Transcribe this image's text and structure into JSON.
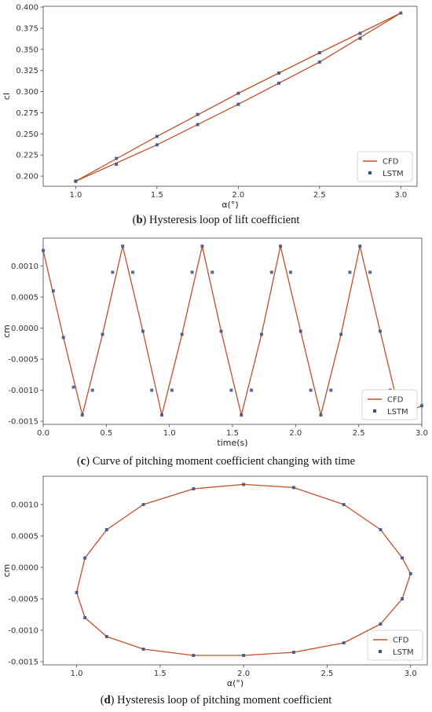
{
  "chart_data": [
    {
      "type": "line",
      "caption": {
        "letter": "b",
        "text": " Hysteresis loop of lift coefficient"
      },
      "xlabel": "α(°)",
      "ylabel": "cl",
      "xlim": [
        0.8,
        3.1
      ],
      "ylim": [
        0.188,
        0.401
      ],
      "xticks": [
        1.0,
        1.5,
        2.0,
        2.5,
        3.0
      ],
      "yticks": [
        0.2,
        0.225,
        0.25,
        0.275,
        0.3,
        0.325,
        0.35,
        0.375,
        0.4
      ],
      "ytick_decimals": 3,
      "legend": {
        "position": "bottom-right",
        "entries": [
          "CFD",
          "LSTM"
        ]
      },
      "series": [
        {
          "name": "CFD",
          "style": "line",
          "color": "#c0502a",
          "x": [
            1.0,
            1.5,
            2.0,
            2.5,
            3.0,
            2.5,
            2.0,
            1.5,
            1.0
          ],
          "y": [
            0.194,
            0.247,
            0.298,
            0.346,
            0.393,
            0.335,
            0.285,
            0.237,
            0.194
          ]
        },
        {
          "name": "LSTM",
          "style": "markers",
          "color": "#3a4f8c",
          "x": [
            1.0,
            1.25,
            1.5,
            1.75,
            2.0,
            2.25,
            2.5,
            2.75,
            3.0,
            2.75,
            2.5,
            2.25,
            2.0,
            1.75,
            1.5,
            1.25,
            1.0
          ],
          "y": [
            0.194,
            0.221,
            0.247,
            0.273,
            0.298,
            0.322,
            0.346,
            0.369,
            0.393,
            0.363,
            0.335,
            0.31,
            0.285,
            0.261,
            0.237,
            0.214,
            0.194
          ]
        }
      ]
    },
    {
      "type": "line",
      "caption": {
        "letter": "c",
        "text": " Curve of pitching moment coefficient changing with time"
      },
      "xlabel": "time(s)",
      "ylabel": "cm",
      "xlim": [
        0.0,
        3.0
      ],
      "ylim": [
        -0.00155,
        0.00145
      ],
      "xticks": [
        0.0,
        0.5,
        1.0,
        1.5,
        2.0,
        2.5,
        3.0
      ],
      "yticks": [
        -0.0015,
        -0.001,
        -0.0005,
        0.0,
        0.0005,
        0.001
      ],
      "ytick_decimals": 4,
      "legend": {
        "position": "bottom-right",
        "entries": [
          "CFD",
          "LSTM"
        ]
      },
      "series": [
        {
          "name": "CFD",
          "style": "line",
          "color": "#c0502a",
          "x": [
            0.0,
            0.16,
            0.31,
            0.47,
            0.63,
            0.79,
            0.94,
            1.1,
            1.26,
            1.41,
            1.57,
            1.73,
            1.88,
            2.04,
            2.2,
            2.36,
            2.51,
            2.67,
            2.83,
            3.0
          ],
          "y": [
            0.00125,
            -0.00015,
            -0.0014,
            -0.0001,
            0.00132,
            -5e-05,
            -0.0014,
            -0.0001,
            0.00132,
            -5e-05,
            -0.0014,
            -0.0001,
            0.00132,
            -5e-05,
            -0.0014,
            -0.0001,
            0.00132,
            -5e-05,
            -0.0014,
            -0.00125
          ]
        },
        {
          "name": "LSTM",
          "style": "markers",
          "color": "#3a4f8c",
          "x": [
            0.0,
            0.08,
            0.16,
            0.24,
            0.31,
            0.39,
            0.47,
            0.55,
            0.63,
            0.71,
            0.79,
            0.86,
            0.94,
            1.02,
            1.1,
            1.18,
            1.26,
            1.34,
            1.41,
            1.49,
            1.57,
            1.65,
            1.73,
            1.81,
            1.88,
            1.96,
            2.04,
            2.12,
            2.2,
            2.28,
            2.36,
            2.43,
            2.51,
            2.59,
            2.67,
            2.75,
            2.83,
            2.91,
            3.0
          ],
          "y": [
            0.00125,
            0.0006,
            -0.00015,
            -0.00095,
            -0.0014,
            -0.001,
            -0.0001,
            0.0009,
            0.00132,
            0.0009,
            -5e-05,
            -0.001,
            -0.0014,
            -0.001,
            -0.0001,
            0.0009,
            0.00132,
            0.0009,
            -5e-05,
            -0.001,
            -0.0014,
            -0.001,
            -0.0001,
            0.0009,
            0.00132,
            0.0009,
            -5e-05,
            -0.001,
            -0.0014,
            -0.001,
            -0.0001,
            0.0009,
            0.00132,
            0.0009,
            -5e-05,
            -0.001,
            -0.0014,
            -0.00135,
            -0.00125
          ]
        }
      ]
    },
    {
      "type": "line",
      "caption": {
        "letter": "d",
        "text": " Hysteresis loop of pitching moment coefficient"
      },
      "xlabel": "α(°)",
      "ylabel": "cm",
      "xlim": [
        0.8,
        3.1
      ],
      "ylim": [
        -0.00155,
        0.00145
      ],
      "xticks": [
        1.0,
        1.5,
        2.0,
        2.5,
        3.0
      ],
      "yticks": [
        -0.0015,
        -0.001,
        -0.0005,
        0.0,
        0.0005,
        0.001
      ],
      "ytick_decimals": 4,
      "legend": {
        "position": "bottom-right",
        "entries": [
          "CFD",
          "LSTM"
        ]
      },
      "series": [
        {
          "name": "CFD",
          "style": "line",
          "color": "#c0502a",
          "x": [
            1.0,
            1.05,
            1.18,
            1.4,
            1.7,
            2.0,
            2.3,
            2.6,
            2.82,
            2.95,
            3.0,
            2.95,
            2.82,
            2.6,
            2.3,
            2.0,
            1.7,
            1.4,
            1.18,
            1.05,
            1.0
          ],
          "y": [
            -0.0004,
            0.00015,
            0.0006,
            0.001,
            0.00125,
            0.00132,
            0.00127,
            0.001,
            0.0006,
            0.00015,
            -0.0001,
            -0.0005,
            -0.0009,
            -0.0012,
            -0.00135,
            -0.0014,
            -0.0014,
            -0.0013,
            -0.0011,
            -0.0008,
            -0.0004
          ]
        },
        {
          "name": "LSTM",
          "style": "markers",
          "color": "#3a4f8c",
          "x": [
            1.0,
            1.05,
            1.18,
            1.4,
            1.7,
            2.0,
            2.3,
            2.6,
            2.82,
            2.95,
            3.0,
            2.95,
            2.82,
            2.6,
            2.3,
            2.0,
            1.7,
            1.4,
            1.18,
            1.05
          ],
          "y": [
            -0.0004,
            0.00015,
            0.0006,
            0.001,
            0.00125,
            0.00132,
            0.00127,
            0.001,
            0.0006,
            0.00015,
            -0.0001,
            -0.0005,
            -0.0009,
            -0.0012,
            -0.00135,
            -0.0014,
            -0.0014,
            -0.0013,
            -0.0011,
            -0.0008
          ]
        }
      ]
    }
  ]
}
